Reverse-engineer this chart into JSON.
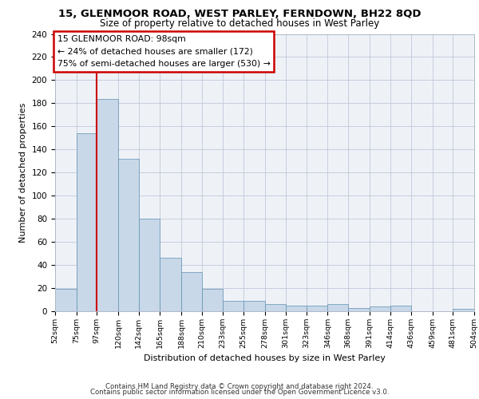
{
  "title_line1": "15, GLENMOOR ROAD, WEST PARLEY, FERNDOWN, BH22 8QD",
  "title_line2": "Size of property relative to detached houses in West Parley",
  "xlabel": "Distribution of detached houses by size in West Parley",
  "ylabel": "Number of detached properties",
  "footer_line1": "Contains HM Land Registry data © Crown copyright and database right 2024.",
  "footer_line2": "Contains public sector information licensed under the Open Government Licence v3.0.",
  "annotation_title": "15 GLENMOOR ROAD: 98sqm",
  "annotation_line2": "← 24% of detached houses are smaller (172)",
  "annotation_line3": "75% of semi-detached houses are larger (530) →",
  "bin_edges": [
    52,
    75,
    97,
    120,
    142,
    165,
    188,
    210,
    233,
    255,
    278,
    301,
    323,
    346,
    368,
    391,
    414,
    436,
    459,
    481,
    504
  ],
  "bar_values": [
    19,
    154,
    184,
    132,
    80,
    46,
    34,
    19,
    9,
    9,
    6,
    5,
    5,
    6,
    3,
    4,
    5,
    0,
    0,
    2
  ],
  "bar_color": "#c8d8e8",
  "bar_edge_color": "#6090b0",
  "vline_color": "#cc0000",
  "vline_x": 97,
  "grid_color": "#c0c8d8",
  "background_color": "#eef2f7",
  "annotation_box_color": "#ffffff",
  "annotation_box_edge": "#cc0000",
  "ylim": [
    0,
    240
  ],
  "yticks": [
    0,
    20,
    40,
    60,
    80,
    100,
    120,
    140,
    160,
    180,
    200,
    220,
    240
  ]
}
